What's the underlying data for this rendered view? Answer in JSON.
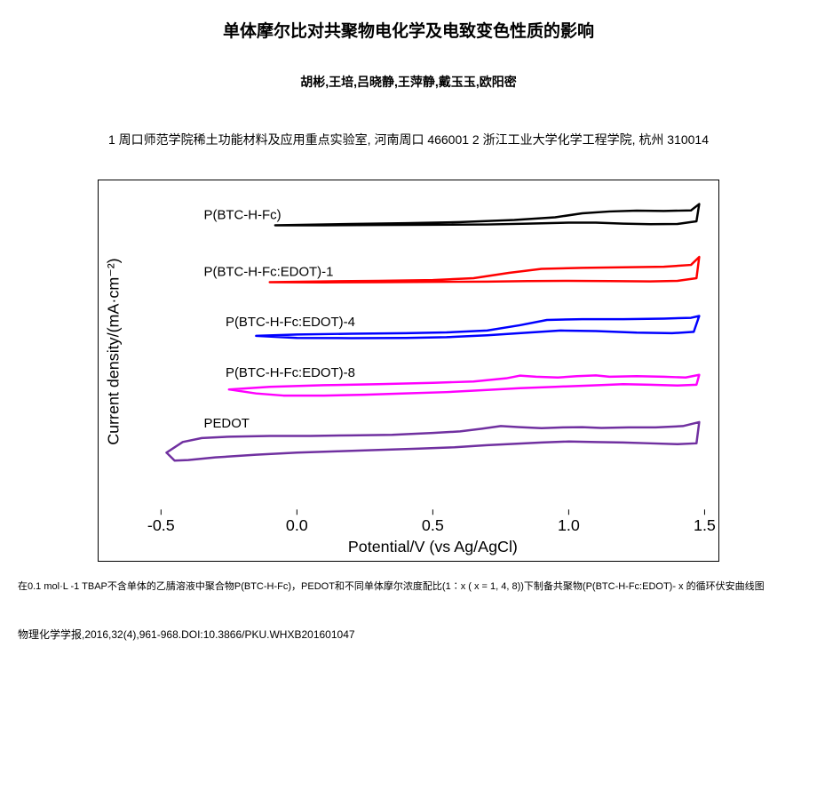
{
  "title": "单体摩尔比对共聚物电化学及电致变色性质的影响",
  "authors": "胡彬,王培,吕晓静,王萍静,戴玉玉,欧阳密",
  "affiliations": "1 周口师范学院稀土功能材料及应用重点实验室, 河南周口 466001 2 浙江工业大学化学工程学院, 杭州 310014",
  "caption": "在0.1 mol·L -1 TBAP不含单体的乙腈溶液中聚合物P(BTC-H-Fc)，PEDOT和不同单体摩尔浓度配比(1∶x ( x = 1, 4, 8))下制备共聚物(P(BTC-H-Fc:EDOT)- x 的循环伏安曲线图",
  "citation": "物理化学学报,2016,32(4),961-968.DOI:10.3866/PKU.WHXB201601047",
  "chart": {
    "type": "line",
    "xlabel": "Potential/V (vs Ag/AgCl)",
    "ylabel": "Current density/(mA·cm⁻²)",
    "xlim": [
      -0.5,
      1.5
    ],
    "xticks": [
      -0.5,
      0.0,
      0.5,
      1.0,
      1.5
    ],
    "xtick_labels": [
      "-0.5",
      "0.0",
      "0.5",
      "1.0",
      "1.5"
    ],
    "ytick_labels": [],
    "background_color": "#ffffff",
    "border_color": "#000000",
    "axis_fontsize": 18,
    "label_fontsize": 15,
    "tick_fontsize": 18,
    "line_width": 2.5,
    "series": [
      {
        "name": "P(BTC-H-Fc)",
        "label_pos": {
          "x": 0.03,
          "y": 0.08
        },
        "color": "#000000",
        "y_offset": 0.1,
        "upper": [
          [
            -0.08,
            0
          ],
          [
            0.2,
            0.005
          ],
          [
            0.4,
            0.008
          ],
          [
            0.6,
            0.012
          ],
          [
            0.8,
            0.02
          ],
          [
            0.95,
            0.03
          ],
          [
            1.05,
            0.045
          ],
          [
            1.15,
            0.052
          ],
          [
            1.25,
            0.055
          ],
          [
            1.35,
            0.054
          ],
          [
            1.45,
            0.056
          ],
          [
            1.48,
            0.08
          ]
        ],
        "lower": [
          [
            1.48,
            0.08
          ],
          [
            1.47,
            0.015
          ],
          [
            1.4,
            0.005
          ],
          [
            1.3,
            0.004
          ],
          [
            1.2,
            0.006
          ],
          [
            1.1,
            0.01
          ],
          [
            1.0,
            0.01
          ],
          [
            0.85,
            0.006
          ],
          [
            0.7,
            0.003
          ],
          [
            0.5,
            0.002
          ],
          [
            0.3,
            0.001
          ],
          [
            0.1,
            0.0
          ],
          [
            -0.08,
            0
          ]
        ]
      },
      {
        "name": "P(BTC-H-Fc:EDOT)-1",
        "label_pos": {
          "x": 0.03,
          "y": 0.26
        },
        "color": "#ff0000",
        "y_offset": 0.28,
        "upper": [
          [
            -0.1,
            0
          ],
          [
            0.1,
            0.003
          ],
          [
            0.3,
            0.005
          ],
          [
            0.5,
            0.008
          ],
          [
            0.65,
            0.015
          ],
          [
            0.78,
            0.035
          ],
          [
            0.9,
            0.05
          ],
          [
            1.05,
            0.054
          ],
          [
            1.2,
            0.056
          ],
          [
            1.35,
            0.058
          ],
          [
            1.45,
            0.065
          ],
          [
            1.48,
            0.095
          ]
        ],
        "lower": [
          [
            1.48,
            0.095
          ],
          [
            1.47,
            0.015
          ],
          [
            1.4,
            0.005
          ],
          [
            1.3,
            0.003
          ],
          [
            1.15,
            0.004
          ],
          [
            1.0,
            0.005
          ],
          [
            0.85,
            0.004
          ],
          [
            0.7,
            0.002
          ],
          [
            0.5,
            0.001
          ],
          [
            0.3,
            0.0
          ],
          [
            0.1,
            -0.001
          ],
          [
            -0.1,
            0
          ]
        ]
      },
      {
        "name": "P(BTC-H-Fc:EDOT)-4",
        "label_pos": {
          "x": 0.07,
          "y": 0.42
        },
        "color": "#0000ff",
        "y_offset": 0.45,
        "upper": [
          [
            -0.15,
            0
          ],
          [
            0.0,
            0.005
          ],
          [
            0.2,
            0.008
          ],
          [
            0.4,
            0.01
          ],
          [
            0.55,
            0.013
          ],
          [
            0.7,
            0.02
          ],
          [
            0.82,
            0.04
          ],
          [
            0.92,
            0.06
          ],
          [
            1.05,
            0.063
          ],
          [
            1.2,
            0.063
          ],
          [
            1.35,
            0.065
          ],
          [
            1.45,
            0.068
          ],
          [
            1.48,
            0.075
          ]
        ],
        "lower": [
          [
            1.48,
            0.075
          ],
          [
            1.46,
            0.015
          ],
          [
            1.38,
            0.01
          ],
          [
            1.25,
            0.012
          ],
          [
            1.1,
            0.018
          ],
          [
            0.97,
            0.02
          ],
          [
            0.85,
            0.012
          ],
          [
            0.7,
            0.002
          ],
          [
            0.55,
            -0.005
          ],
          [
            0.4,
            -0.008
          ],
          [
            0.2,
            -0.009
          ],
          [
            0.0,
            -0.008
          ],
          [
            -0.15,
            0
          ]
        ]
      },
      {
        "name": "P(BTC-H-Fc:EDOT)-8",
        "label_pos": {
          "x": 0.07,
          "y": 0.58
        },
        "color": "#ff00ff",
        "y_offset": 0.62,
        "upper": [
          [
            -0.25,
            0
          ],
          [
            -0.1,
            0.01
          ],
          [
            0.1,
            0.016
          ],
          [
            0.3,
            0.02
          ],
          [
            0.5,
            0.025
          ],
          [
            0.65,
            0.03
          ],
          [
            0.77,
            0.042
          ],
          [
            0.82,
            0.052
          ],
          [
            0.88,
            0.048
          ],
          [
            0.96,
            0.045
          ],
          [
            1.03,
            0.05
          ],
          [
            1.1,
            0.053
          ],
          [
            1.15,
            0.048
          ],
          [
            1.25,
            0.05
          ],
          [
            1.35,
            0.048
          ],
          [
            1.43,
            0.045
          ],
          [
            1.48,
            0.055
          ]
        ],
        "lower": [
          [
            1.48,
            0.055
          ],
          [
            1.47,
            0.018
          ],
          [
            1.4,
            0.015
          ],
          [
            1.3,
            0.018
          ],
          [
            1.2,
            0.02
          ],
          [
            1.08,
            0.015
          ],
          [
            0.95,
            0.01
          ],
          [
            0.82,
            0.005
          ],
          [
            0.7,
            -0.002
          ],
          [
            0.55,
            -0.01
          ],
          [
            0.4,
            -0.015
          ],
          [
            0.25,
            -0.02
          ],
          [
            0.1,
            -0.023
          ],
          [
            -0.05,
            -0.023
          ],
          [
            -0.15,
            -0.015
          ],
          [
            -0.25,
            0
          ]
        ]
      },
      {
        "name": "PEDOT",
        "label_pos": {
          "x": 0.03,
          "y": 0.74
        },
        "color": "#7030a0",
        "y_offset": 0.82,
        "upper": [
          [
            -0.48,
            0
          ],
          [
            -0.42,
            0.04
          ],
          [
            -0.35,
            0.055
          ],
          [
            -0.25,
            0.06
          ],
          [
            -0.1,
            0.063
          ],
          [
            0.05,
            0.063
          ],
          [
            0.2,
            0.065
          ],
          [
            0.35,
            0.067
          ],
          [
            0.5,
            0.074
          ],
          [
            0.6,
            0.08
          ],
          [
            0.68,
            0.09
          ],
          [
            0.75,
            0.1
          ],
          [
            0.82,
            0.096
          ],
          [
            0.9,
            0.092
          ],
          [
            0.98,
            0.095
          ],
          [
            1.05,
            0.096
          ],
          [
            1.12,
            0.093
          ],
          [
            1.22,
            0.095
          ],
          [
            1.32,
            0.095
          ],
          [
            1.42,
            0.1
          ],
          [
            1.48,
            0.115
          ]
        ],
        "lower": [
          [
            1.48,
            0.115
          ],
          [
            1.47,
            0.035
          ],
          [
            1.4,
            0.032
          ],
          [
            1.3,
            0.035
          ],
          [
            1.2,
            0.038
          ],
          [
            1.1,
            0.04
          ],
          [
            1.0,
            0.042
          ],
          [
            0.9,
            0.038
          ],
          [
            0.8,
            0.033
          ],
          [
            0.7,
            0.028
          ],
          [
            0.58,
            0.02
          ],
          [
            0.45,
            0.015
          ],
          [
            0.3,
            0.01
          ],
          [
            0.15,
            0.005
          ],
          [
            0.0,
            0.0
          ],
          [
            -0.15,
            -0.008
          ],
          [
            -0.3,
            -0.018
          ],
          [
            -0.4,
            -0.028
          ],
          [
            -0.45,
            -0.03
          ],
          [
            -0.48,
            0
          ]
        ]
      }
    ]
  }
}
